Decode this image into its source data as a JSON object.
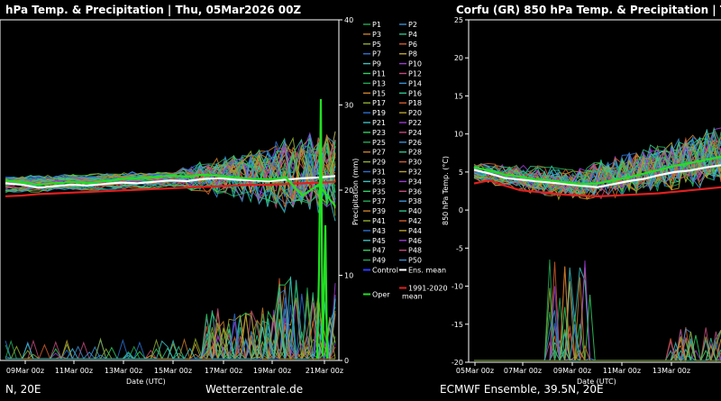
{
  "left_panel": {
    "title": "hPa Temp. & Precipitation | Thu, 05Mar2026 00Z",
    "footer_left": "N, 20E",
    "footer_right": "Wetterzentrale.de",
    "x_label": "Date (UTC)",
    "y2_label": "Precipitation (mm)"
  },
  "right_panel": {
    "title": "Corfu   (GR)  850 hPa Temp. & Precipitation | Th",
    "footer": "ECMWF Ensemble, 39.5N, 20E",
    "x_label": "Date (UTC)",
    "y_label": "850 hPa Temp. (°C)"
  },
  "legend": {
    "members": [
      "P1",
      "P2",
      "P3",
      "P4",
      "P5",
      "P6",
      "P7",
      "P8",
      "P9",
      "P10",
      "P11",
      "P12",
      "P13",
      "P14",
      "P15",
      "P16",
      "P17",
      "P18",
      "P19",
      "P20",
      "P21",
      "P22",
      "P23",
      "P24",
      "P25",
      "P26",
      "P27",
      "P28",
      "P29",
      "P30",
      "P31",
      "P32",
      "P33",
      "P34",
      "P35",
      "P36",
      "P37",
      "P38",
      "P39",
      "P40",
      "P41",
      "P42",
      "P43",
      "P44",
      "P45",
      "P46",
      "P47",
      "P48",
      "P49",
      "P50"
    ],
    "control": "Control",
    "ens_mean": "Ens. mean",
    "oper": "Oper",
    "climate_line1": "1991-2020",
    "climate_line2": "mean",
    "colors": {
      "control": "#2a3cff",
      "ens_mean": "#ffffff",
      "oper": "#22e022",
      "climate": "#e02020"
    }
  },
  "chart_data": [
    {
      "type": "line",
      "panel": "left",
      "x_ticks": [
        "09Mar 00z",
        "11Mar 00z",
        "13Mar 00z",
        "15Mar 00z",
        "17Mar 00z",
        "19Mar 00z",
        "21Mar 00z"
      ],
      "y2_ticks": [
        0,
        10,
        20,
        30,
        40
      ],
      "y2lim": [
        0,
        40
      ],
      "xlabel": "Date (UTC)",
      "y2label": "Precipitation (mm)",
      "series": [
        {
          "name": "Ens. mean",
          "values": [
            21.2,
            21.0,
            20.6,
            20.8,
            21.0,
            20.9,
            21.1,
            21.3,
            21.2,
            21.4,
            21.6,
            21.5,
            21.8,
            21.9,
            21.7,
            21.6,
            21.5,
            21.7,
            21.9,
            22.0,
            22.2
          ]
        },
        {
          "name": "1991-2020 mean",
          "values": [
            19.4,
            19.5,
            19.7,
            19.8,
            19.9,
            20.0,
            20.1,
            20.2,
            20.3,
            20.4,
            20.5,
            20.6,
            20.7,
            20.8,
            20.9,
            21.0,
            21.0,
            21.1,
            21.2,
            21.3,
            21.4
          ]
        },
        {
          "name": "Oper",
          "values": [
            21.6,
            21.3,
            21.0,
            21.2,
            21.4,
            21.2,
            21.5,
            21.8,
            21.9,
            22.0,
            22.3,
            22.1,
            22.4,
            22.2,
            22.0,
            21.8,
            21.7,
            22.0,
            19.5,
            21.0,
            18.0
          ]
        }
      ]
    },
    {
      "type": "line",
      "panel": "right",
      "x_ticks": [
        "05Mar 00z",
        "07Mar 00z",
        "09Mar 00z",
        "11Mar 00z",
        "13Mar 00z"
      ],
      "y_ticks": [
        25,
        20,
        15,
        10,
        5,
        0,
        -5,
        -10,
        -15,
        -20
      ],
      "ylim": [
        -20,
        25
      ],
      "xlabel": "Date (UTC)",
      "ylabel": "850 hPa Temp. (°C)",
      "series": [
        {
          "name": "Ens. mean",
          "values": [
            5.3,
            4.8,
            4.2,
            4.0,
            3.8,
            3.6,
            3.4,
            3.2,
            3.0,
            3.4,
            3.8,
            4.1,
            4.6,
            5.0,
            5.2,
            5.6,
            5.9
          ]
        },
        {
          "name": "1991-2020 mean",
          "values": [
            3.5,
            3.9,
            3.2,
            2.6,
            2.4,
            2.2,
            2.0,
            1.9,
            1.8,
            1.9,
            2.0,
            2.1,
            2.2,
            2.4,
            2.6,
            2.8,
            3.0
          ]
        },
        {
          "name": "Oper",
          "values": [
            5.6,
            5.2,
            4.6,
            4.4,
            4.0,
            3.9,
            3.6,
            3.4,
            3.5,
            3.9,
            4.3,
            4.8,
            5.3,
            5.8,
            6.2,
            6.6,
            7.0
          ]
        }
      ]
    }
  ]
}
